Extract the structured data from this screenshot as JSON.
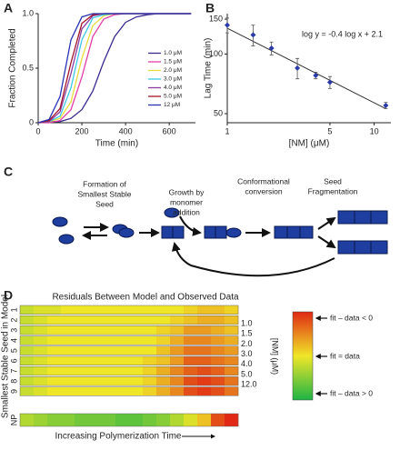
{
  "chart_data": [
    {
      "type": "line",
      "panel": "A",
      "xlabel": "Time (min)",
      "ylabel": "Fraction Completed",
      "x": [
        0,
        50,
        100,
        150,
        200,
        250,
        300,
        350,
        400,
        450,
        500,
        550,
        600,
        650,
        700
      ],
      "xlim": [
        0,
        720
      ],
      "xticks": [
        0,
        200,
        400,
        600
      ],
      "ylim": [
        0,
        1
      ],
      "yticks": [
        0,
        0.5,
        {
          "value": 1,
          "label": "1.0"
        }
      ],
      "legend": "lower right",
      "series": [
        {
          "name": "1.0 μM",
          "color": "#3a2a8c",
          "values": [
            0,
            0.01,
            0.01,
            0.04,
            0.12,
            0.29,
            0.56,
            0.79,
            0.92,
            0.97,
            0.99,
            1,
            1,
            1,
            1
          ]
        },
        {
          "name": "1.5 μM",
          "color": "#e040a8",
          "values": [
            0,
            0,
            0.02,
            0.12,
            0.42,
            0.79,
            0.95,
            0.99,
            1,
            1,
            1,
            1,
            1,
            1,
            1
          ]
        },
        {
          "name": "2.0 μM",
          "color": "#e6dc3c",
          "values": [
            0,
            0.01,
            0.04,
            0.19,
            0.59,
            0.89,
            0.98,
            1,
            1,
            1,
            1,
            1,
            1,
            1,
            1
          ]
        },
        {
          "name": "3.0 μM",
          "color": "#3cc8e6",
          "values": [
            0,
            0.01,
            0.06,
            0.32,
            0.76,
            0.96,
            0.99,
            1,
            1,
            1,
            1,
            1,
            1,
            1,
            1
          ]
        },
        {
          "name": "4.0 μM",
          "color": "#8c3ca0",
          "values": [
            0,
            0.01,
            0.1,
            0.45,
            0.86,
            0.98,
            1,
            1,
            1,
            1,
            1,
            1,
            1,
            1,
            1
          ]
        },
        {
          "name": "5.0 μM",
          "color": "#a01428",
          "values": [
            0,
            0.02,
            0.13,
            0.55,
            0.91,
            0.99,
            1,
            1,
            1,
            1,
            1,
            1,
            1,
            1,
            1
          ]
        },
        {
          "name": "12 μM",
          "color": "#2834b4",
          "values": [
            0,
            0.03,
            0.24,
            0.76,
            0.97,
            1,
            1,
            1,
            1,
            1,
            1,
            1,
            1,
            1,
            1
          ]
        }
      ]
    },
    {
      "type": "scatter",
      "panel": "B",
      "xlabel": "[NM] (μM)",
      "ylabel": "Lag Time (min)",
      "annotation": "log y = -0.4 log x + 2.1",
      "xscale": "log",
      "yscale": "log",
      "x": [
        1,
        1.5,
        2,
        3,
        4,
        5,
        12
      ],
      "xlim": [
        1,
        13
      ],
      "xticks": [
        1,
        5,
        10
      ],
      "ylim": [
        45,
        160
      ],
      "yticks": [
        50,
        100,
        150
      ],
      "series": [
        {
          "color": "#2a3aa8",
          "values": [
            140,
            125,
            107,
            85,
            78,
            72,
            55
          ],
          "errors": [
            12,
            15,
            8,
            10,
            3,
            5,
            2
          ]
        }
      ],
      "fit": {
        "x": [
          1,
          12
        ],
        "values": [
          135,
          53
        ],
        "color": "#333333"
      }
    },
    {
      "type": "heatmap",
      "panel": "D",
      "title": "Residuals Between Model and Observed Data",
      "ylabel": "Smallest Stable Seed in Model",
      "xlabel": "Increasing Polymerization Time",
      "rows": [
        "1",
        "2",
        "3",
        "4",
        "5",
        "6",
        "7",
        "8",
        "9",
        "NP"
      ],
      "values": [
        [
          0.2,
          0.1,
          0.1,
          0,
          0,
          0,
          0,
          0,
          0,
          0,
          0,
          0,
          -0.1,
          -0.2,
          -0.2,
          -0.1
        ],
        [
          0.2,
          0.1,
          0,
          0,
          0,
          0,
          0,
          0,
          0,
          0,
          0,
          -0.1,
          -0.2,
          -0.3,
          -0.3,
          -0.2
        ],
        [
          0.2,
          0.1,
          0,
          0,
          0,
          0,
          0,
          0,
          0,
          0,
          -0.1,
          -0.2,
          -0.4,
          -0.4,
          -0.3,
          -0.2
        ],
        [
          0.2,
          0.1,
          0,
          0,
          0,
          0,
          0,
          0,
          0,
          0,
          -0.1,
          -0.3,
          -0.5,
          -0.5,
          -0.4,
          -0.3
        ],
        [
          0.2,
          0.1,
          0,
          0,
          0,
          0,
          0,
          0,
          0,
          0,
          -0.2,
          -0.4,
          -0.6,
          -0.6,
          -0.5,
          -0.4
        ],
        [
          0.2,
          0.1,
          0,
          0,
          0,
          0,
          0,
          0,
          0,
          -0.1,
          -0.2,
          -0.4,
          -0.7,
          -0.7,
          -0.6,
          -0.5
        ],
        [
          0.2,
          0.1,
          0,
          0,
          0,
          0,
          0,
          0,
          0,
          -0.1,
          -0.3,
          -0.5,
          -0.7,
          -0.8,
          -0.7,
          -0.5
        ],
        [
          0.2,
          0.1,
          0,
          0,
          0,
          0,
          0,
          0,
          0,
          -0.1,
          -0.3,
          -0.5,
          -0.8,
          -0.9,
          -0.8,
          -0.6
        ],
        [
          0.2,
          0.1,
          0,
          0,
          0,
          0,
          0,
          0,
          0,
          -0.1,
          -0.3,
          -0.5,
          -0.8,
          -0.9,
          -0.8,
          -0.6
        ],
        [
          0.3,
          0.4,
          0.5,
          0.5,
          0.6,
          0.6,
          0.6,
          0.7,
          0.7,
          0.6,
          0.5,
          0.3,
          0.1,
          -0.2,
          -0.8,
          -1
        ]
      ],
      "concentrations": [
        "1.0",
        "1.5",
        "2.0",
        "3.0",
        "4.0",
        "5.0",
        "12.0"
      ],
      "concentration_label": "[NM] (μM)",
      "colors": [
        "#e02814",
        "#f0e628",
        "#1eb446"
      ],
      "colorbar_labels": [
        "fit – data < 0",
        "fit = data",
        "fit – data > 0"
      ]
    }
  ],
  "diagram": {
    "panel": "C",
    "steps": [
      {
        "lines": [
          "Formation of",
          "Smallest Stable",
          "Seed"
        ]
      },
      {
        "lines": [
          "Growth by",
          "monomer",
          "addition"
        ]
      },
      {
        "lines": [
          "Conformational",
          "conversion"
        ]
      },
      {
        "lines": [
          "Seed",
          "Fragmentation"
        ]
      }
    ]
  }
}
